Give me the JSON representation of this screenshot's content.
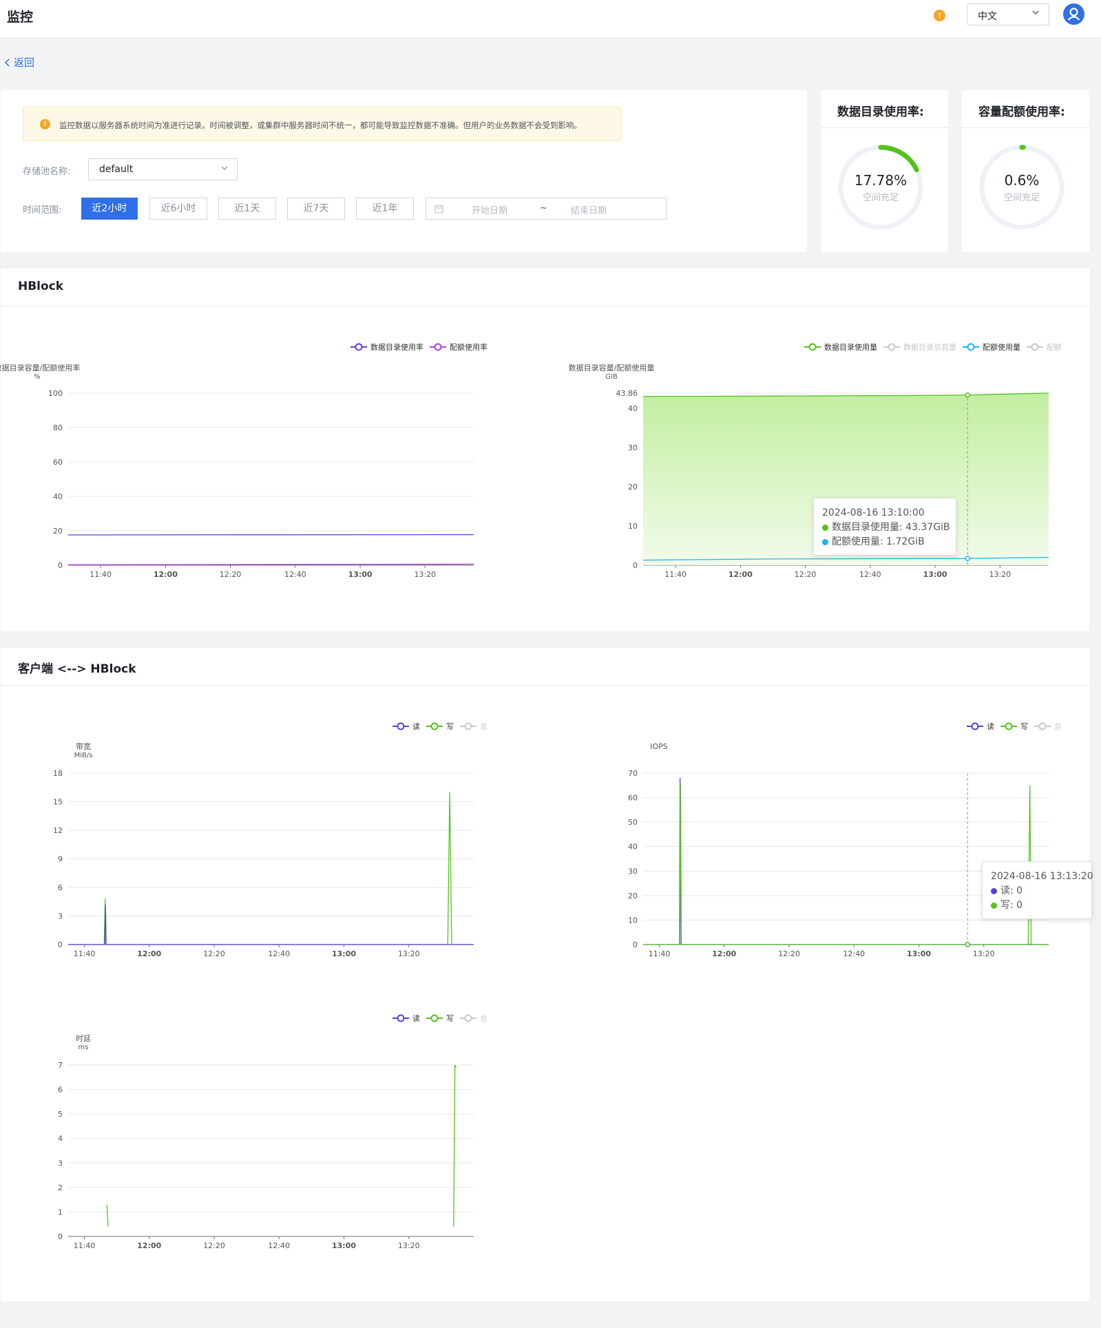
{
  "header": {
    "title": "监控",
    "language": "中文"
  },
  "back": "返回",
  "notice": "监控数据以服务器系统时间为准进行记录。时间被调整，或集群中服务器时间不统一，都可能导致监控数据不准确。但用户的业务数据不会受到影响。",
  "filters": {
    "pool_label": "存储池名称:",
    "pool_value": "default",
    "time_label": "时间范围:",
    "time_options": [
      "近2小时",
      "近6小时",
      "近1天",
      "近7天",
      "近1年"
    ],
    "selected": "近2小时",
    "start_placeholder": "开始日期",
    "tilde": "~",
    "end_placeholder": "结束日期"
  },
  "gauges": [
    {
      "title": "数据目录使用率:",
      "percent": 17.78,
      "value": "17.78%",
      "sub": "空间充足",
      "color": "#52c41a"
    },
    {
      "title": "容量配额使用率:",
      "percent": 0.6,
      "value": "0.6%",
      "sub": "空间充足",
      "color": "#52c41a"
    }
  ],
  "sections": {
    "hblock": "HBlock",
    "client": "客户端 <--> HBlock"
  },
  "chart_data": [
    {
      "id": "hb-rate",
      "type": "line",
      "ylabel": "数据目录容量/配额使用率",
      "unit": "%",
      "yticks": [
        0,
        20,
        40,
        60,
        80,
        100
      ],
      "ylim": [
        0,
        100
      ],
      "xlim": [
        0,
        125
      ],
      "xticks": [
        {
          "v": 10,
          "label": "11:40",
          "bold": false
        },
        {
          "v": 30,
          "label": "12:00",
          "bold": true
        },
        {
          "v": 50,
          "label": "12:20",
          "bold": false
        },
        {
          "v": 70,
          "label": "12:40",
          "bold": false
        },
        {
          "v": 90,
          "label": "13:00",
          "bold": true
        },
        {
          "v": 110,
          "label": "13:20",
          "bold": false
        }
      ],
      "legend": [
        {
          "name": "数据目录使用率",
          "color": "#5b3fe0",
          "active": true
        },
        {
          "name": "配额使用率",
          "color": "#b13fd1",
          "active": true
        }
      ],
      "series": [
        {
          "name": "数据目录使用率",
          "color": "#5b3fe0",
          "points": [
            [
              0,
              17.6
            ],
            [
              60,
              17.7
            ],
            [
              125,
              17.78
            ]
          ]
        },
        {
          "name": "配额使用率",
          "color": "#b13fd1",
          "points": [
            [
              0,
              0.3
            ],
            [
              125,
              0.6
            ]
          ]
        }
      ]
    },
    {
      "id": "hb-usage",
      "type": "area",
      "ylabel": "数据目录容量/配额使用量",
      "unit": "GiB",
      "yticks": [
        0,
        10,
        20,
        30,
        40,
        43.86
      ],
      "ylim": [
        0,
        43.86
      ],
      "xlim": [
        0,
        125
      ],
      "xticks": [
        {
          "v": 10,
          "label": "11:40",
          "bold": false
        },
        {
          "v": 30,
          "label": "12:00",
          "bold": true
        },
        {
          "v": 50,
          "label": "12:20",
          "bold": false
        },
        {
          "v": 70,
          "label": "12:40",
          "bold": false
        },
        {
          "v": 90,
          "label": "13:00",
          "bold": true
        },
        {
          "v": 110,
          "label": "13:20",
          "bold": false
        }
      ],
      "legend": [
        {
          "name": "数据目录使用量",
          "color": "#52c41a",
          "active": true
        },
        {
          "name": "数据目录总容量",
          "color": "#c4c7cc",
          "active": false
        },
        {
          "name": "配额使用量",
          "color": "#1fb6e8",
          "active": true
        },
        {
          "name": "配额",
          "color": "#c4c7cc",
          "active": false
        }
      ],
      "series": [
        {
          "name": "数据目录使用量",
          "color": "#52c41a",
          "fill": true,
          "points": [
            [
              0,
              43.0
            ],
            [
              40,
              43.1
            ],
            [
              80,
              43.25
            ],
            [
              100,
              43.37
            ],
            [
              125,
              43.86
            ]
          ]
        },
        {
          "name": "配额使用量",
          "color": "#1fb6e8",
          "points": [
            [
              0,
              1.3
            ],
            [
              40,
              1.6
            ],
            [
              100,
              1.72
            ],
            [
              125,
              2.0
            ]
          ]
        }
      ],
      "cursor_x": 100
    },
    {
      "id": "cl-bw",
      "type": "line",
      "ylabel": "带宽",
      "unit": "MiB/s",
      "yticks": [
        0,
        3,
        6,
        9,
        12,
        15,
        18
      ],
      "ylim": [
        0,
        18
      ],
      "xlim": [
        0,
        125
      ],
      "xticks": [
        {
          "v": 5,
          "label": "11:40",
          "bold": false
        },
        {
          "v": 25,
          "label": "12:00",
          "bold": true
        },
        {
          "v": 45,
          "label": "12:20",
          "bold": false
        },
        {
          "v": 65,
          "label": "12:40",
          "bold": false
        },
        {
          "v": 85,
          "label": "13:00",
          "bold": true
        },
        {
          "v": 105,
          "label": "13:20",
          "bold": false
        }
      ],
      "legend": [
        {
          "name": "读",
          "color": "#5b3fe0",
          "active": true
        },
        {
          "name": "写",
          "color": "#52c41a",
          "active": true
        },
        {
          "name": "总",
          "color": "#c4c7cc",
          "active": false
        }
      ],
      "series": [
        {
          "name": "写",
          "color": "#52c41a",
          "points": [
            [
              0,
              0
            ],
            [
              11.1,
              0
            ],
            [
              11.4,
              4.8
            ],
            [
              11.7,
              0
            ],
            [
              117,
              0
            ],
            [
              117.6,
              16
            ],
            [
              118.2,
              0
            ],
            [
              125,
              0
            ]
          ]
        },
        {
          "name": "读",
          "color": "#5b3fe0",
          "points": [
            [
              0,
              0
            ],
            [
              11.3,
              0
            ],
            [
              11.5,
              4.2
            ],
            [
              11.7,
              0
            ],
            [
              125,
              0
            ]
          ]
        }
      ]
    },
    {
      "id": "cl-iops",
      "type": "line",
      "ylabel": "IOPS",
      "unit": "",
      "yticks": [
        0,
        10,
        20,
        30,
        40,
        50,
        60,
        70
      ],
      "ylim": [
        0,
        70
      ],
      "xlim": [
        0,
        125
      ],
      "xticks": [
        {
          "v": 5,
          "label": "11:40",
          "bold": false
        },
        {
          "v": 25,
          "label": "12:00",
          "bold": true
        },
        {
          "v": 45,
          "label": "12:20",
          "bold": false
        },
        {
          "v": 65,
          "label": "12:40",
          "bold": false
        },
        {
          "v": 85,
          "label": "13:00",
          "bold": true
        },
        {
          "v": 105,
          "label": "13:20",
          "bold": false
        }
      ],
      "legend": [
        {
          "name": "读",
          "color": "#5b3fe0",
          "active": true
        },
        {
          "name": "写",
          "color": "#52c41a",
          "active": true
        },
        {
          "name": "总",
          "color": "#c4c7cc",
          "active": false
        }
      ],
      "series": [
        {
          "name": "读",
          "color": "#5b3fe0",
          "points": [
            [
              0,
              0
            ],
            [
              11.2,
              0
            ],
            [
              11.4,
              68
            ],
            [
              11.7,
              0
            ],
            [
              125,
              0
            ]
          ]
        },
        {
          "name": "写",
          "color": "#52c41a",
          "points": [
            [
              0,
              0
            ],
            [
              11.3,
              0
            ],
            [
              11.5,
              66
            ],
            [
              11.8,
              0
            ],
            [
              118.7,
              0
            ],
            [
              119.2,
              65
            ],
            [
              119.6,
              0
            ],
            [
              125,
              0
            ]
          ]
        }
      ],
      "cursor_x": 100
    },
    {
      "id": "cl-lat",
      "type": "line",
      "ylabel": "时延",
      "unit": "ms",
      "yticks": [
        0,
        1,
        2,
        3,
        4,
        5,
        6,
        7
      ],
      "ylim": [
        0,
        7
      ],
      "xlim": [
        0,
        125
      ],
      "xticks": [
        {
          "v": 5,
          "label": "11:40",
          "bold": false
        },
        {
          "v": 25,
          "label": "12:00",
          "bold": true
        },
        {
          "v": 45,
          "label": "12:20",
          "bold": false
        },
        {
          "v": 65,
          "label": "12:40",
          "bold": false
        },
        {
          "v": 85,
          "label": "13:00",
          "bold": true
        },
        {
          "v": 105,
          "label": "13:20",
          "bold": false
        }
      ],
      "legend": [
        {
          "name": "读",
          "color": "#5b3fe0",
          "active": true
        },
        {
          "name": "写",
          "color": "#52c41a",
          "active": true
        },
        {
          "name": "总",
          "color": "#c4c7cc",
          "active": false
        }
      ],
      "series": [
        {
          "name": "写",
          "color": "#52c41a",
          "points": [
            [
              11.9,
              1.3
            ],
            [
              12.3,
              0.4
            ]
          ]
        },
        {
          "name": "写",
          "color": "#52c41a",
          "points": [
            [
              118.8,
              0.4
            ],
            [
              119.2,
              7.0
            ],
            [
              119.6,
              6.9
            ]
          ]
        }
      ]
    }
  ],
  "tooltips": {
    "hb_usage": {
      "time": "2024-08-16 13:10:00",
      "rows": [
        {
          "label": "数据目录使用量:",
          "value": "43.37GiB",
          "color": "#52c41a"
        },
        {
          "label": "配额使用量:",
          "value": "1.72GiB",
          "color": "#1fb6e8"
        }
      ]
    },
    "iops": {
      "time": "2024-08-16 13:13:20",
      "rows": [
        {
          "label": "读:",
          "value": "0",
          "color": "#5b3fe0"
        },
        {
          "label": "写:",
          "value": "0",
          "color": "#52c41a"
        }
      ]
    }
  }
}
